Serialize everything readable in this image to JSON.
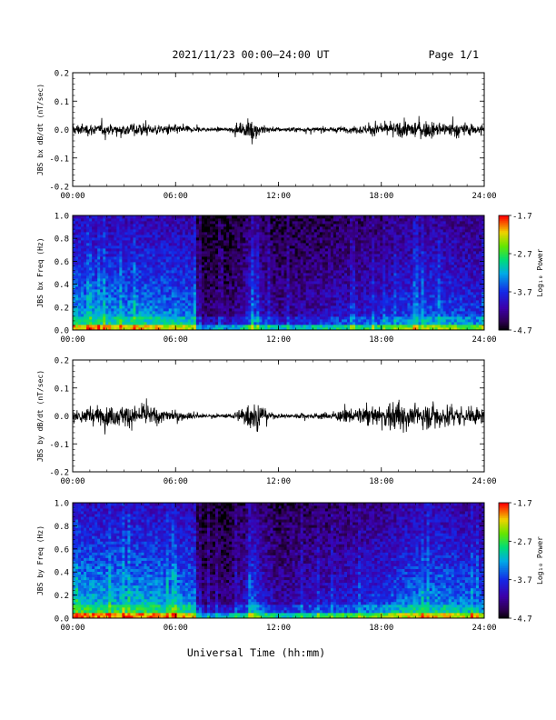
{
  "header": {
    "title": "2021/11/23  00:00–24:00 UT",
    "page": "Page 1/1"
  },
  "x_axis_label": "Universal Time (hh:mm)",
  "chart_data": [
    {
      "type": "line",
      "ylabel": "JBS bx dB/dt (nT/sec)",
      "xlim": [
        0,
        24
      ],
      "ylim": [
        -0.2,
        0.2
      ],
      "yticks": [
        "0.2",
        "0.1",
        "0.0",
        "-0.1",
        "-0.2"
      ],
      "xticks": [
        "00:00",
        "06:00",
        "12:00",
        "18:00",
        "24:00"
      ],
      "series": [
        {
          "values_desc": "dB/dt timeseries",
          "envelope": {
            "x": [
              0,
              1,
              2,
              3,
              4,
              5,
              6,
              7,
              8,
              9,
              10,
              10.5,
              11,
              11.5,
              12,
              13,
              14,
              15,
              16,
              17,
              18,
              19,
              20,
              21,
              22,
              23,
              24
            ],
            "amp": [
              0.04,
              0.035,
              0.035,
              0.04,
              0.04,
              0.035,
              0.03,
              0.02,
              0.012,
              0.012,
              0.04,
              0.07,
              0.04,
              0.02,
              0.015,
              0.015,
              0.015,
              0.015,
              0.02,
              0.03,
              0.04,
              0.045,
              0.06,
              0.05,
              0.045,
              0.04,
              0.035
            ]
          }
        }
      ]
    },
    {
      "type": "heatmap",
      "ylabel": "JBS bx Freq (Hz)",
      "xlim": [
        0,
        24
      ],
      "ylim": [
        0.0,
        1.0
      ],
      "yticks": [
        "1.0",
        "0.8",
        "0.6",
        "0.4",
        "0.2",
        "0.0"
      ],
      "xticks": [
        "00:00",
        "06:00",
        "12:00",
        "18:00",
        "24:00"
      ],
      "colorbar": {
        "label": "Log₁₀ Power",
        "ticks": [
          "-1.7",
          "-2.7",
          "-3.7",
          "-4.7"
        ],
        "range": [
          -4.7,
          -1.7
        ]
      },
      "activity": {
        "x": [
          0,
          2,
          4,
          6,
          7.2,
          7.3,
          9,
          10,
          10.5,
          11,
          12,
          14,
          16,
          18,
          20,
          22,
          24
        ],
        "level": [
          0.75,
          0.72,
          0.72,
          0.7,
          0.65,
          0.3,
          0.28,
          0.4,
          0.6,
          0.45,
          0.35,
          0.4,
          0.45,
          0.5,
          0.62,
          0.6,
          0.55
        ]
      }
    },
    {
      "type": "line",
      "ylabel": "JBS by dB/dt (nT/sec)",
      "xlim": [
        0,
        24
      ],
      "ylim": [
        -0.2,
        0.2
      ],
      "yticks": [
        "0.2",
        "0.1",
        "0.0",
        "-0.1",
        "-0.2"
      ],
      "xticks": [
        "00:00",
        "06:00",
        "12:00",
        "18:00",
        "24:00"
      ],
      "series": [
        {
          "values_desc": "dB/dt timeseries",
          "envelope": {
            "x": [
              0,
              1,
              2,
              3,
              4,
              5,
              6,
              7,
              8,
              9,
              10,
              10.5,
              11,
              11.5,
              12,
              13,
              14,
              15,
              16,
              17,
              18,
              18.5,
              19,
              19.5,
              20,
              21,
              22,
              23,
              24
            ],
            "amp": [
              0.05,
              0.06,
              0.06,
              0.07,
              0.07,
              0.05,
              0.04,
              0.02,
              0.012,
              0.012,
              0.05,
              0.1,
              0.08,
              0.02,
              0.015,
              0.015,
              0.02,
              0.025,
              0.04,
              0.05,
              0.06,
              0.09,
              0.12,
              0.08,
              0.07,
              0.1,
              0.07,
              0.06,
              0.05
            ]
          }
        }
      ]
    },
    {
      "type": "heatmap",
      "ylabel": "JBS by Freq (Hz)",
      "xlim": [
        0,
        24
      ],
      "ylim": [
        0.0,
        1.0
      ],
      "yticks": [
        "1.0",
        "0.8",
        "0.6",
        "0.4",
        "0.2",
        "0.0"
      ],
      "xticks": [
        "00:00",
        "06:00",
        "12:00",
        "18:00",
        "24:00"
      ],
      "colorbar": {
        "label": "Log₁₀ Power",
        "ticks": [
          "-1.7",
          "-2.7",
          "-3.7",
          "-4.7"
        ],
        "range": [
          -4.7,
          -1.7
        ]
      },
      "activity": {
        "x": [
          0,
          2,
          4,
          6,
          7.2,
          7.3,
          9,
          10,
          10.5,
          11,
          12,
          14,
          16,
          18,
          20,
          22,
          24
        ],
        "level": [
          0.8,
          0.78,
          0.78,
          0.75,
          0.7,
          0.32,
          0.3,
          0.45,
          0.65,
          0.5,
          0.38,
          0.45,
          0.5,
          0.58,
          0.7,
          0.7,
          0.62
        ]
      }
    }
  ]
}
